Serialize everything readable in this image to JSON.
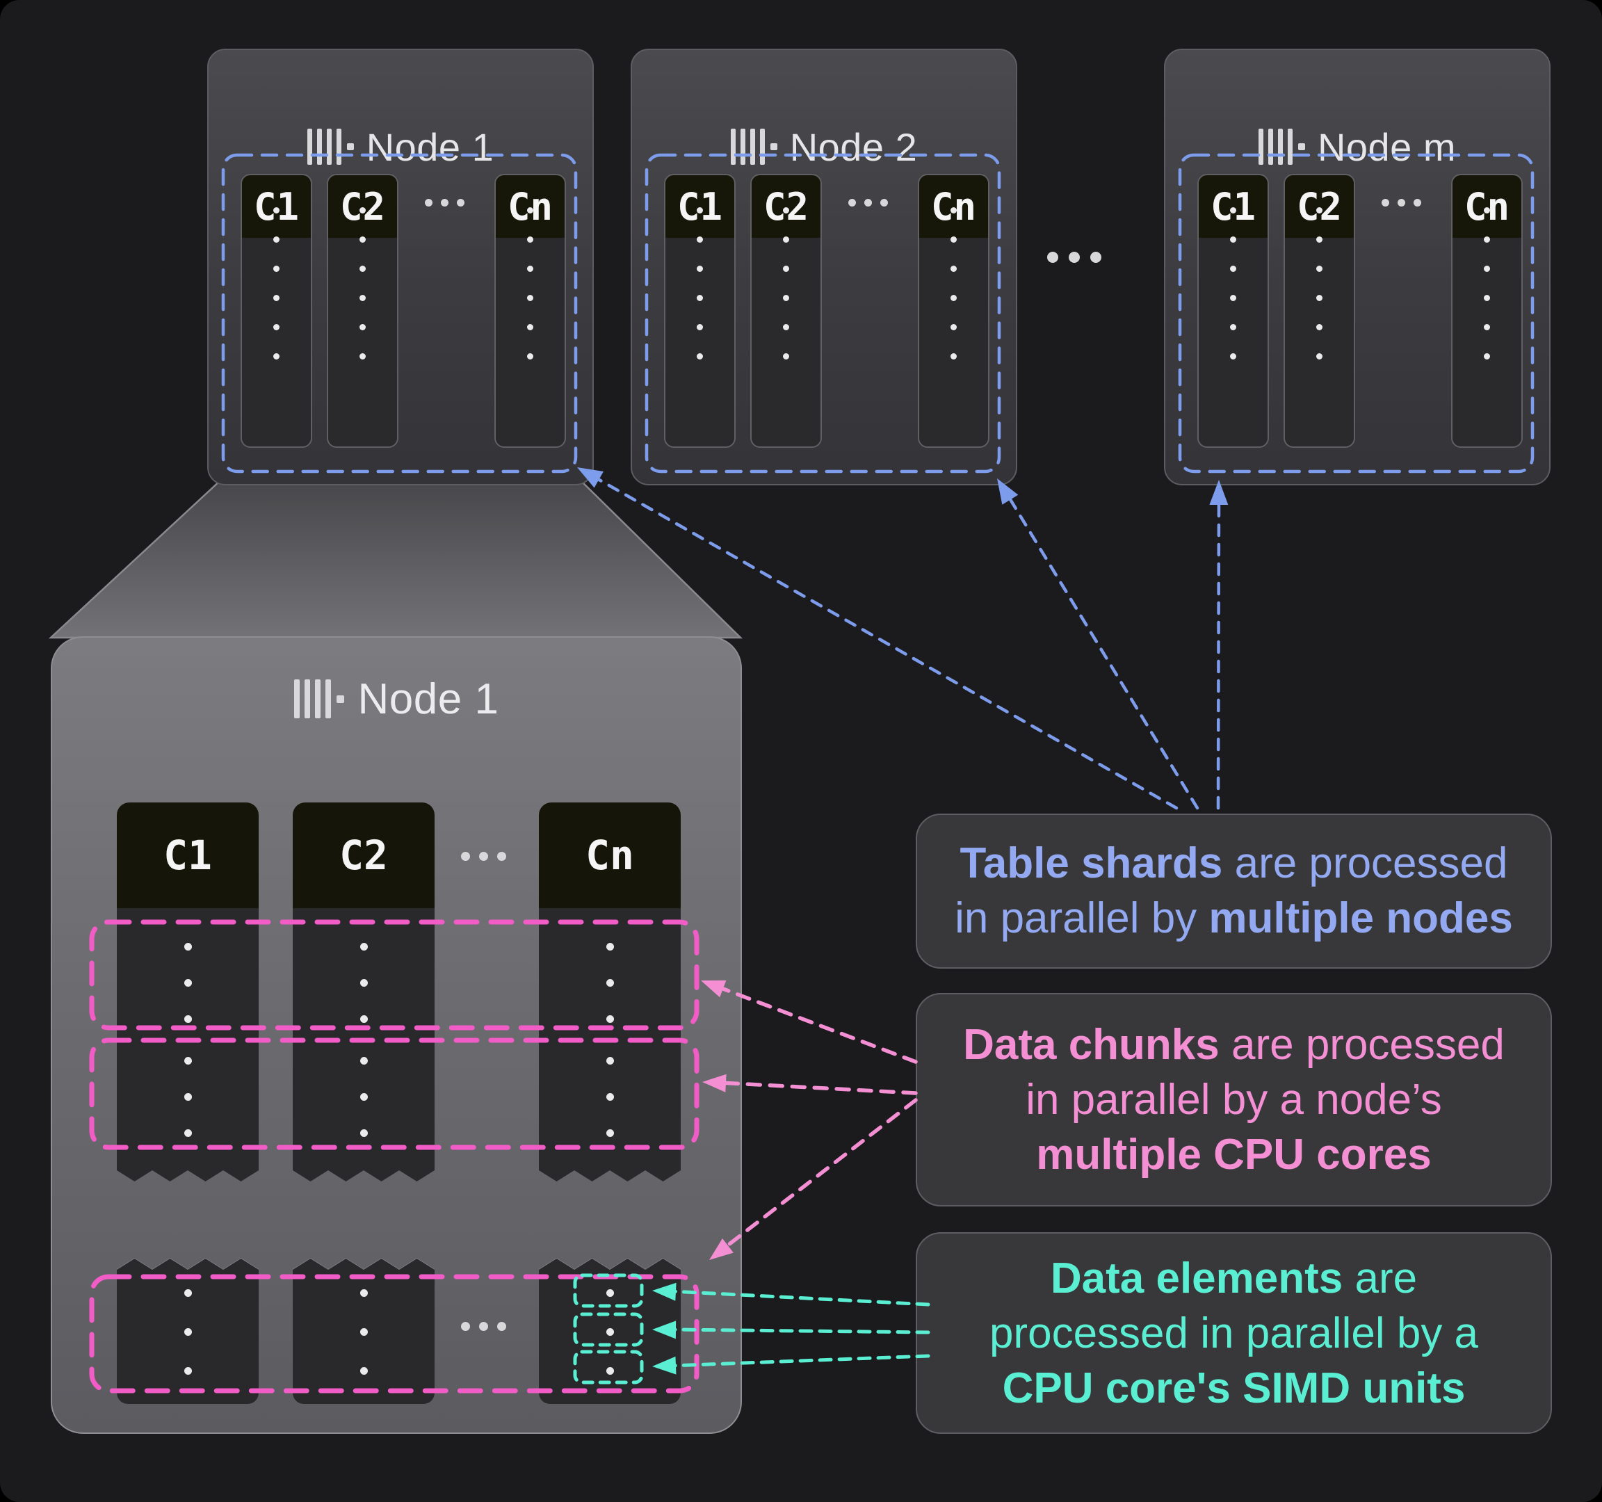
{
  "figure": {
    "background": "#1b1b1d"
  },
  "columns": [
    "C1",
    "C2",
    "Cn"
  ],
  "ellipsis": "...",
  "top_nodes": [
    {
      "title": "Node 1"
    },
    {
      "title": "Node 2"
    },
    {
      "title": "Node m"
    }
  ],
  "detail_node": {
    "title": "Node 1"
  },
  "icons": {
    "node_icon": "column-bars-icon"
  },
  "colors": {
    "background": "#1b1b1d",
    "accent_blue": "#7e9cec",
    "accent_blue_text": "#93a9f1",
    "accent_pink": "#f25cc6",
    "accent_pink_text": "#f48fd4",
    "accent_teal": "#5aeed2",
    "card_border": "#5d5d61",
    "text_light": "#e6e6e8"
  },
  "annotations": [
    {
      "id": "shards",
      "lines": [
        [
          {
            "t": "Table shards",
            "b": true
          },
          {
            "t": " are processed",
            "b": false
          }
        ],
        [
          {
            "t": "in parallel by ",
            "b": false
          },
          {
            "t": "multiple nodes",
            "b": true
          }
        ]
      ]
    },
    {
      "id": "chunks",
      "lines": [
        [
          {
            "t": "Data chunks",
            "b": true
          },
          {
            "t": " are processed",
            "b": false
          }
        ],
        [
          {
            "t": "in parallel by a node’s",
            "b": false
          }
        ],
        [
          {
            "t": "multiple CPU cores",
            "b": true
          }
        ]
      ]
    },
    {
      "id": "elements",
      "lines": [
        [
          {
            "t": "Data elements",
            "b": true
          },
          {
            "t": " are",
            "b": false
          }
        ],
        [
          {
            "t": "processed in parallel by a",
            "b": false
          }
        ],
        [
          {
            "t": "CPU core's SIMD units",
            "b": true
          }
        ]
      ]
    }
  ]
}
